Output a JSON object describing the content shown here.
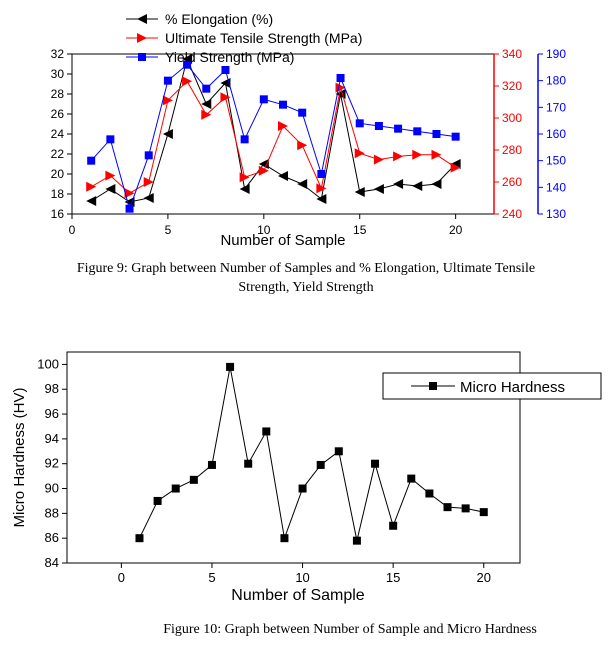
{
  "chart_data": [
    {
      "type": "line",
      "title": "",
      "xlabel": "Number of Sample",
      "x": [
        1,
        2,
        3,
        4,
        5,
        6,
        7,
        8,
        9,
        10,
        11,
        12,
        13,
        14,
        15,
        16,
        17,
        18,
        19,
        20
      ],
      "xlim": [
        0,
        22
      ],
      "xticks": [
        "0",
        "5",
        "10",
        "15",
        "20"
      ],
      "legend": "top-left",
      "series": [
        {
          "name": "% Elongation (%)",
          "axis": "left",
          "color": "#000000",
          "marker": "left-triangle",
          "values": [
            17.3,
            18.5,
            17.2,
            17.6,
            24.0,
            31.5,
            27.0,
            29.1,
            18.5,
            21.0,
            19.8,
            19.0,
            17.5,
            28.0,
            18.2,
            18.5,
            19.0,
            18.8,
            19.0,
            21.0
          ]
        },
        {
          "name": "Ultimate Tensile Strength (MPa)",
          "axis": "right1",
          "color": "#ff0000",
          "marker": "right-triangle",
          "values": [
            257,
            264,
            253,
            260,
            311,
            323,
            302,
            313,
            263,
            267,
            295,
            283,
            256,
            319,
            278,
            274,
            276,
            277,
            277,
            269
          ]
        },
        {
          "name": "Yield Strength (MPa)",
          "axis": "right2",
          "color": "#0000ff",
          "marker": "square",
          "values": [
            150,
            158,
            132,
            152,
            180,
            186,
            177,
            184,
            158,
            173,
            171,
            168,
            145,
            181,
            164,
            163,
            162,
            161,
            160,
            159
          ]
        }
      ],
      "axes": {
        "left": {
          "ylim": [
            16,
            32
          ],
          "ticks": [
            "16",
            "18",
            "20",
            "22",
            "24",
            "26",
            "28",
            "30",
            "32"
          ],
          "color": "#000000"
        },
        "right1": {
          "ylim": [
            240,
            340
          ],
          "ticks": [
            "240",
            "260",
            "280",
            "300",
            "320",
            "340"
          ],
          "color": "#ff0000"
        },
        "right2": {
          "ylim": [
            130,
            190
          ],
          "ticks": [
            "130",
            "140",
            "150",
            "160",
            "170",
            "180",
            "190"
          ],
          "color": "#0000ff"
        }
      }
    },
    {
      "type": "line",
      "title": "",
      "xlabel": "Number of Sample",
      "ylabel": "Micro Hardness (HV)",
      "x": [
        1,
        2,
        3,
        4,
        5,
        6,
        7,
        8,
        9,
        10,
        11,
        12,
        13,
        14,
        15,
        16,
        17,
        18,
        19,
        20
      ],
      "xlim": [
        -3,
        22
      ],
      "ylim": [
        84,
        101
      ],
      "xticks": [
        "0",
        "5",
        "10",
        "15",
        "20"
      ],
      "yticks": [
        "84",
        "86",
        "88",
        "90",
        "92",
        "94",
        "96",
        "98",
        "100"
      ],
      "legend": "top-right",
      "series": [
        {
          "name": "Micro Hardness",
          "color": "#000000",
          "marker": "square",
          "values": [
            86.0,
            89.0,
            90.0,
            90.7,
            91.9,
            99.8,
            92.0,
            94.6,
            86.0,
            90.0,
            91.9,
            93.0,
            85.8,
            92.0,
            87.0,
            90.8,
            89.6,
            88.5,
            88.4,
            88.1
          ]
        }
      ]
    }
  ],
  "captions": {
    "fig9_line1": "Figure 9: Graph between Number of Samples and % Elongation, Ultimate Tensile",
    "fig9_line2": "Strength, Yield Strength",
    "fig10": "Figure 10: Graph between Number of Sample and Micro Hardness"
  }
}
